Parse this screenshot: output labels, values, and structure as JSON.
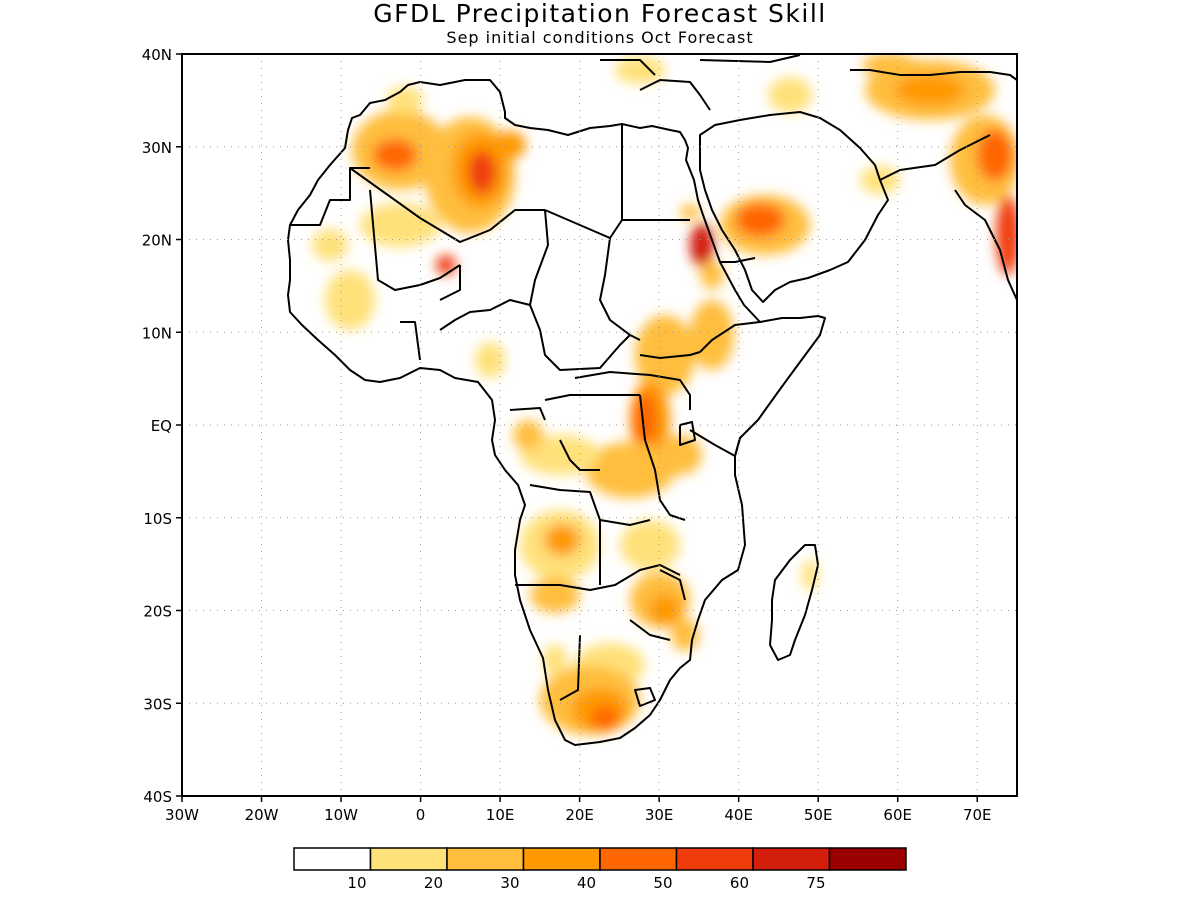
{
  "title": "GFDL Precipitation Forecast Skill",
  "subtitle": "Sep initial conditions  Oct Forecast",
  "lon_ticks": [
    "30W",
    "20W",
    "10W",
    "0",
    "10E",
    "20E",
    "30E",
    "40E",
    "50E",
    "60E",
    "70E"
  ],
  "lat_ticks": [
    "40N",
    "30N",
    "20N",
    "10N",
    "EQ",
    "10S",
    "20S",
    "30S",
    "40S"
  ],
  "colorbar": {
    "colors": [
      "#ffffff",
      "#ffe17a",
      "#ffbe3c",
      "#ff9900",
      "#ff6600",
      "#f03c0a",
      "#d21e0a",
      "#9b0000"
    ],
    "labels": [
      "10",
      "20",
      "30",
      "40",
      "50",
      "60",
      "75"
    ]
  }
}
